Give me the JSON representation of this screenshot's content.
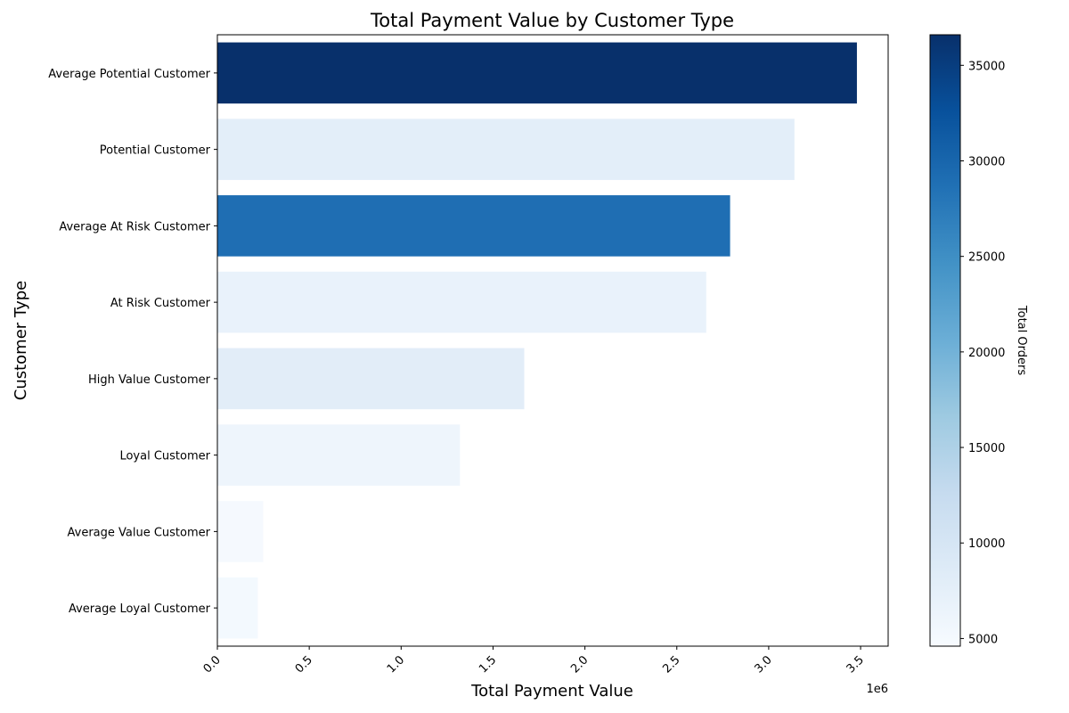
{
  "chart_data": {
    "type": "bar",
    "orientation": "horizontal",
    "title": "Total Payment Value by Customer Type",
    "xlabel": "Total Payment Value",
    "ylabel": "Customer Type",
    "x_offset_label": "1e6",
    "xlim": [
      0,
      3.65
    ],
    "x_ticks": [
      "0.0",
      "0.5",
      "1.0",
      "1.5",
      "2.0",
      "2.5",
      "3.0",
      "3.5"
    ],
    "categories": [
      "Average Potential Customer",
      "Potential Customer",
      "Average At Risk Customer",
      "At Risk Customer",
      "High Value Customer",
      "Loyal Customer",
      "Average Value Customer",
      "Average Loyal Customer"
    ],
    "values": [
      3.48,
      3.14,
      2.79,
      2.66,
      1.67,
      1.32,
      0.25,
      0.22
    ],
    "color_values": [
      36600,
      7800,
      29000,
      6800,
      8000,
      6000,
      5000,
      5200
    ],
    "colorbar": {
      "label": "Total Orders",
      "min": 4600,
      "max": 36600,
      "ticks": [
        "5000",
        "10000",
        "15000",
        "20000",
        "25000",
        "30000",
        "35000"
      ],
      "colormap": "Blues",
      "stops": [
        "#f7fbff",
        "#deebf7",
        "#c6dbef",
        "#9ecae1",
        "#6baed6",
        "#4292c6",
        "#2171b5",
        "#08519c",
        "#08306b"
      ]
    },
    "grid": false
  }
}
